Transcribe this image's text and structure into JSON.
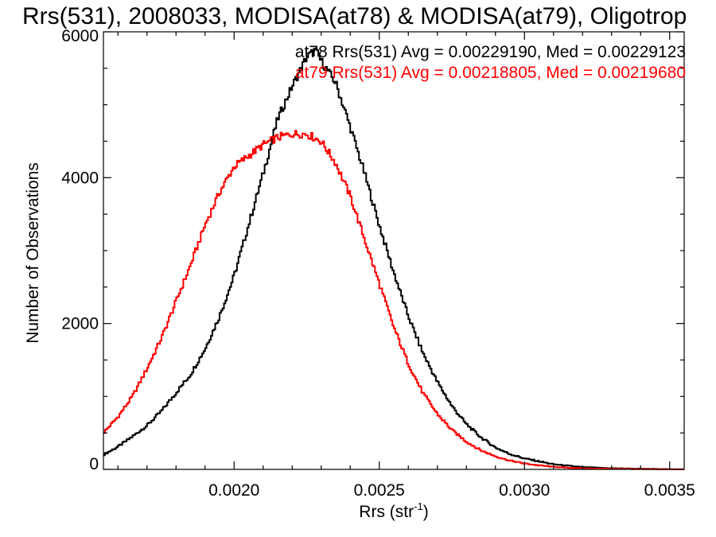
{
  "chart_data": {
    "type": "line",
    "title": "Rrs(531), 2008033, MODISA(at78) & MODISA(at79), Oligotrop",
    "xlabel": "Rrs (str",
    "xlabel_sup": "-1",
    "xlabel_close": ")",
    "ylabel": "Number of Observations",
    "xlim": [
      0.00155,
      0.00355
    ],
    "ylim": [
      0,
      6000
    ],
    "xticks": [
      0.002,
      0.0025,
      0.003,
      0.0035
    ],
    "xtick_labels": [
      "0.0020",
      "0.0025",
      "0.0030",
      "0.0035"
    ],
    "yticks": [
      0,
      2000,
      4000,
      6000
    ],
    "ytick_labels": [
      "0",
      "2000",
      "4000",
      "6000"
    ],
    "grid": false,
    "legend_position": "top-right",
    "series": [
      {
        "name": "at78",
        "label": "at78 Rrs(531) Avg = 0.00229190, Med = 0.00229123",
        "color": "#000000",
        "x": [
          0.00155,
          0.0016,
          0.00165,
          0.0017,
          0.00175,
          0.0018,
          0.00185,
          0.0019,
          0.00195,
          0.002,
          0.00205,
          0.0021,
          0.00215,
          0.0022,
          0.00225,
          0.00228,
          0.0023,
          0.00235,
          0.0024,
          0.00245,
          0.0025,
          0.00255,
          0.0026,
          0.00265,
          0.0027,
          0.00275,
          0.0028,
          0.00285,
          0.0029,
          0.00295,
          0.003,
          0.00305,
          0.0031,
          0.00315,
          0.0032,
          0.0033,
          0.0034,
          0.00355
        ],
        "y": [
          200,
          310,
          450,
          600,
          800,
          1050,
          1300,
          1650,
          2100,
          2650,
          3350,
          4050,
          4800,
          5250,
          5650,
          5750,
          5600,
          5300,
          4700,
          4050,
          3350,
          2700,
          2100,
          1600,
          1200,
          870,
          620,
          440,
          300,
          210,
          150,
          110,
          70,
          50,
          30,
          15,
          8,
          0
        ]
      },
      {
        "name": "at79",
        "label": "at79 Rrs(531) Avg = 0.00218805, Med = 0.00219680",
        "color": "#ff0000",
        "x": [
          0.00155,
          0.0016,
          0.00165,
          0.0017,
          0.00175,
          0.0018,
          0.00185,
          0.0019,
          0.00195,
          0.002,
          0.00205,
          0.0021,
          0.00215,
          0.0022,
          0.00225,
          0.0023,
          0.00235,
          0.0024,
          0.00245,
          0.0025,
          0.00255,
          0.0026,
          0.00265,
          0.0027,
          0.00275,
          0.0028,
          0.00285,
          0.0029,
          0.00295,
          0.003,
          0.00305,
          0.0031,
          0.00315,
          0.0032,
          0.0033,
          0.0034,
          0.00355
        ],
        "y": [
          500,
          720,
          1000,
          1380,
          1800,
          2300,
          2800,
          3350,
          3800,
          4150,
          4300,
          4450,
          4550,
          4600,
          4600,
          4500,
          4200,
          3750,
          3150,
          2550,
          1950,
          1450,
          1050,
          760,
          540,
          380,
          260,
          180,
          120,
          80,
          55,
          35,
          22,
          14,
          8,
          4,
          0
        ]
      }
    ]
  }
}
